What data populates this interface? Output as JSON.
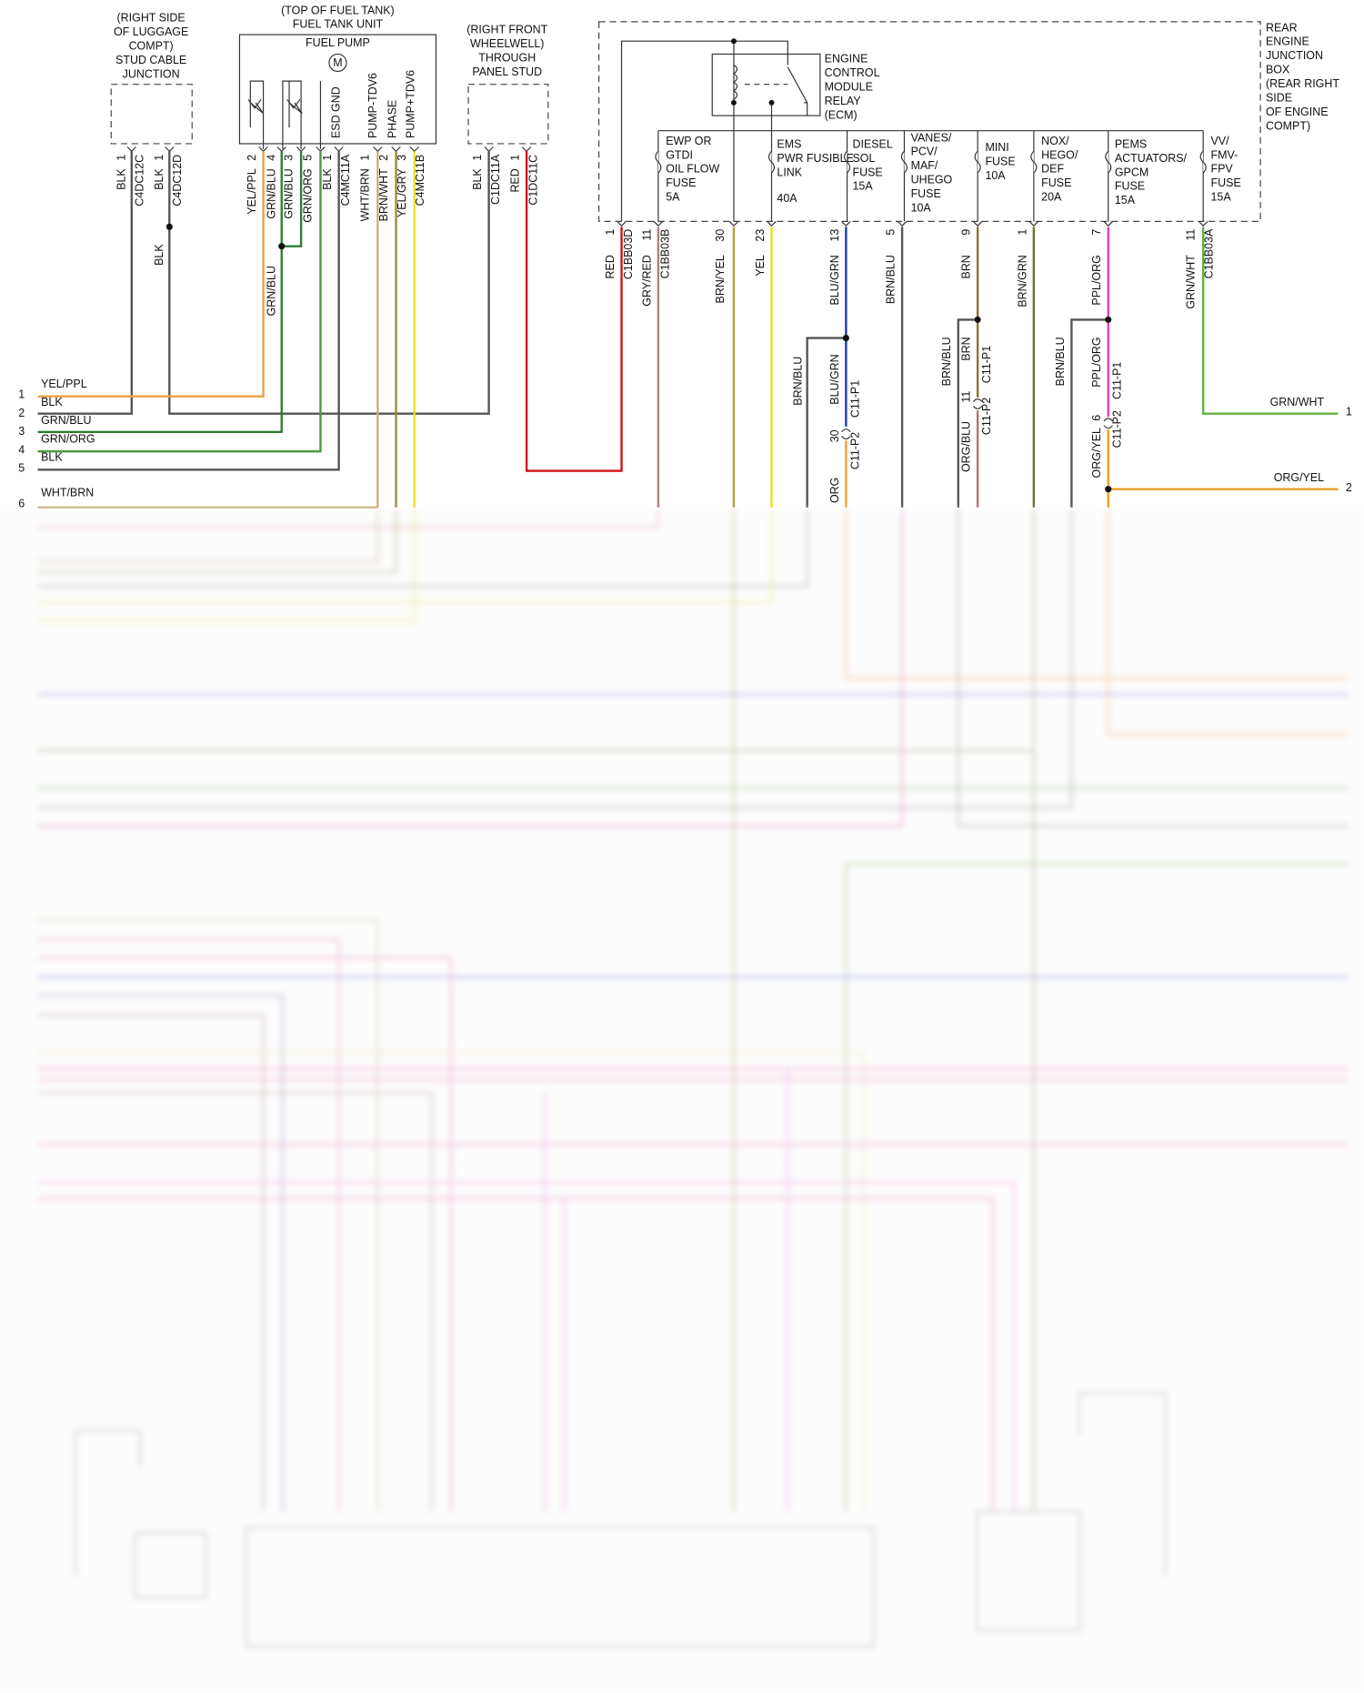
{
  "luggage_junction": {
    "label": [
      "(RIGHT SIDE",
      "OF LUGGAGE",
      "COMPT)",
      "STUD CABLE",
      "JUNCTION"
    ],
    "pins": [
      {
        "wire": "BLK",
        "pin": "1",
        "connector": "C4DC12C"
      },
      {
        "wire": "BLK",
        "pin": "1",
        "connector": "C4DC12D"
      }
    ],
    "splice_wire": "BLK"
  },
  "fuel_tank": {
    "label": [
      "(TOP OF FUEL TANK)",
      "FUEL TANK UNIT",
      "FUEL PUMP"
    ],
    "motor": "M",
    "circuits": [
      "ESD GND",
      "PUMP-TDV6",
      "PHASE",
      "PUMP+TDV6"
    ],
    "pins": [
      {
        "wire": "YEL/PPL",
        "pin": "2"
      },
      {
        "wire": "GRN/BLU",
        "pin": "4"
      },
      {
        "wire": "GRN/BLU",
        "pin": "3"
      },
      {
        "wire": "GRN/ORG",
        "pin": "5"
      },
      {
        "wire": "BLK",
        "pin": "1"
      },
      {
        "wire": "WHT/BRN",
        "pin": "1"
      },
      {
        "wire": "BRN/WHT",
        "pin": "2"
      },
      {
        "wire": "YEL/GRY",
        "pin": "3"
      }
    ],
    "connectors": [
      "C4MC11A",
      "C4MC11B"
    ],
    "splice_wire": "GRN/BLU"
  },
  "wheelwell_stud": {
    "label": [
      "(RIGHT FRONT",
      "WHEELWELL)",
      "THROUGH",
      "PANEL STUD"
    ],
    "pins": [
      {
        "wire": "BLK",
        "pin": "1",
        "connector": "C1DC11A"
      },
      {
        "wire": "RED",
        "pin": "1",
        "connector": "C1DC11C"
      }
    ]
  },
  "junction_box": {
    "label": [
      "REAR",
      "ENGINE",
      "JUNCTION",
      "BOX",
      "(REAR RIGHT",
      "SIDE",
      "OF ENGINE",
      "COMPT)"
    ],
    "relay": [
      "ENGINE",
      "CONTROL",
      "MODULE",
      "RELAY",
      "(ECM)"
    ],
    "fuses": [
      [
        "EWP OR",
        "GTDI",
        "OIL FLOW",
        "FUSE",
        "5A"
      ],
      [
        "EMS",
        "PWR FUSIBLE",
        "LINK",
        "40A"
      ],
      [
        "DIESEL",
        "SOL",
        "FUSE",
        "15A"
      ],
      [
        "VANES/",
        "PCV/",
        "MAF/",
        "UHEGO",
        "FUSE",
        "10A"
      ],
      [
        "MINI",
        "FUSE",
        "10A"
      ],
      [
        "NOX/",
        "HEGO/",
        "DEF",
        "FUSE",
        "20A"
      ],
      [
        "PEMS",
        "ACTUATORS/",
        "GPCM",
        "FUSE",
        "15A"
      ],
      [
        "VV/",
        "FMV-",
        "FPV",
        "FUSE",
        "15A"
      ]
    ],
    "pins": [
      {
        "pin": "1",
        "wire": "RED",
        "connector": "C1BB03D"
      },
      {
        "pin": "11",
        "wire": "GRY/RED",
        "connector": "C1BB03B"
      },
      {
        "pin": "30",
        "wire": "BRN/YEL"
      },
      {
        "pin": "23",
        "wire": "YEL"
      },
      {
        "pin": "13",
        "wire": "BLU/GRN"
      },
      {
        "pin": "5",
        "wire": "BRN/BLU"
      },
      {
        "pin": "9",
        "wire": "BRN"
      },
      {
        "pin": "1",
        "wire": "BRN/GRN"
      },
      {
        "pin": "7",
        "wire": "PPL/ORG"
      },
      {
        "pin": "11",
        "wire": "GRN/WHT",
        "connector": "C1BB03A"
      }
    ]
  },
  "splices": [
    {
      "branch": "BRN/BLU",
      "upper_wire": "BLU/GRN",
      "upper_connector": "C11-P1",
      "pin": "30",
      "lower_connector": "C11-P2",
      "lower_wire": "ORG"
    },
    {
      "branch": "BRN/BLU",
      "upper_wire": "BRN",
      "upper_connector": "C11-P1",
      "pin": "11",
      "lower_connector": "C11-P2",
      "lower_wire": "ORG/BLU"
    },
    {
      "branch": "BRN/BLU",
      "upper_wire": "PPL/ORG",
      "upper_connector": "C11-P1",
      "pin": "6",
      "lower_connector": "C11-P2",
      "lower_wire": "ORG/YEL"
    }
  ],
  "left_wires": [
    {
      "number": "1",
      "color": "YEL/PPL"
    },
    {
      "number": "2",
      "color": "BLK"
    },
    {
      "number": "3",
      "color": "GRN/BLU"
    },
    {
      "number": "4",
      "color": "GRN/ORG"
    },
    {
      "number": "5",
      "color": "BLK"
    },
    {
      "number": "6",
      "color": "WHT/BRN"
    }
  ],
  "right_wires": [
    {
      "number": "1",
      "color": "GRN/WHT"
    },
    {
      "number": "2",
      "color": "ORG/YEL"
    }
  ]
}
